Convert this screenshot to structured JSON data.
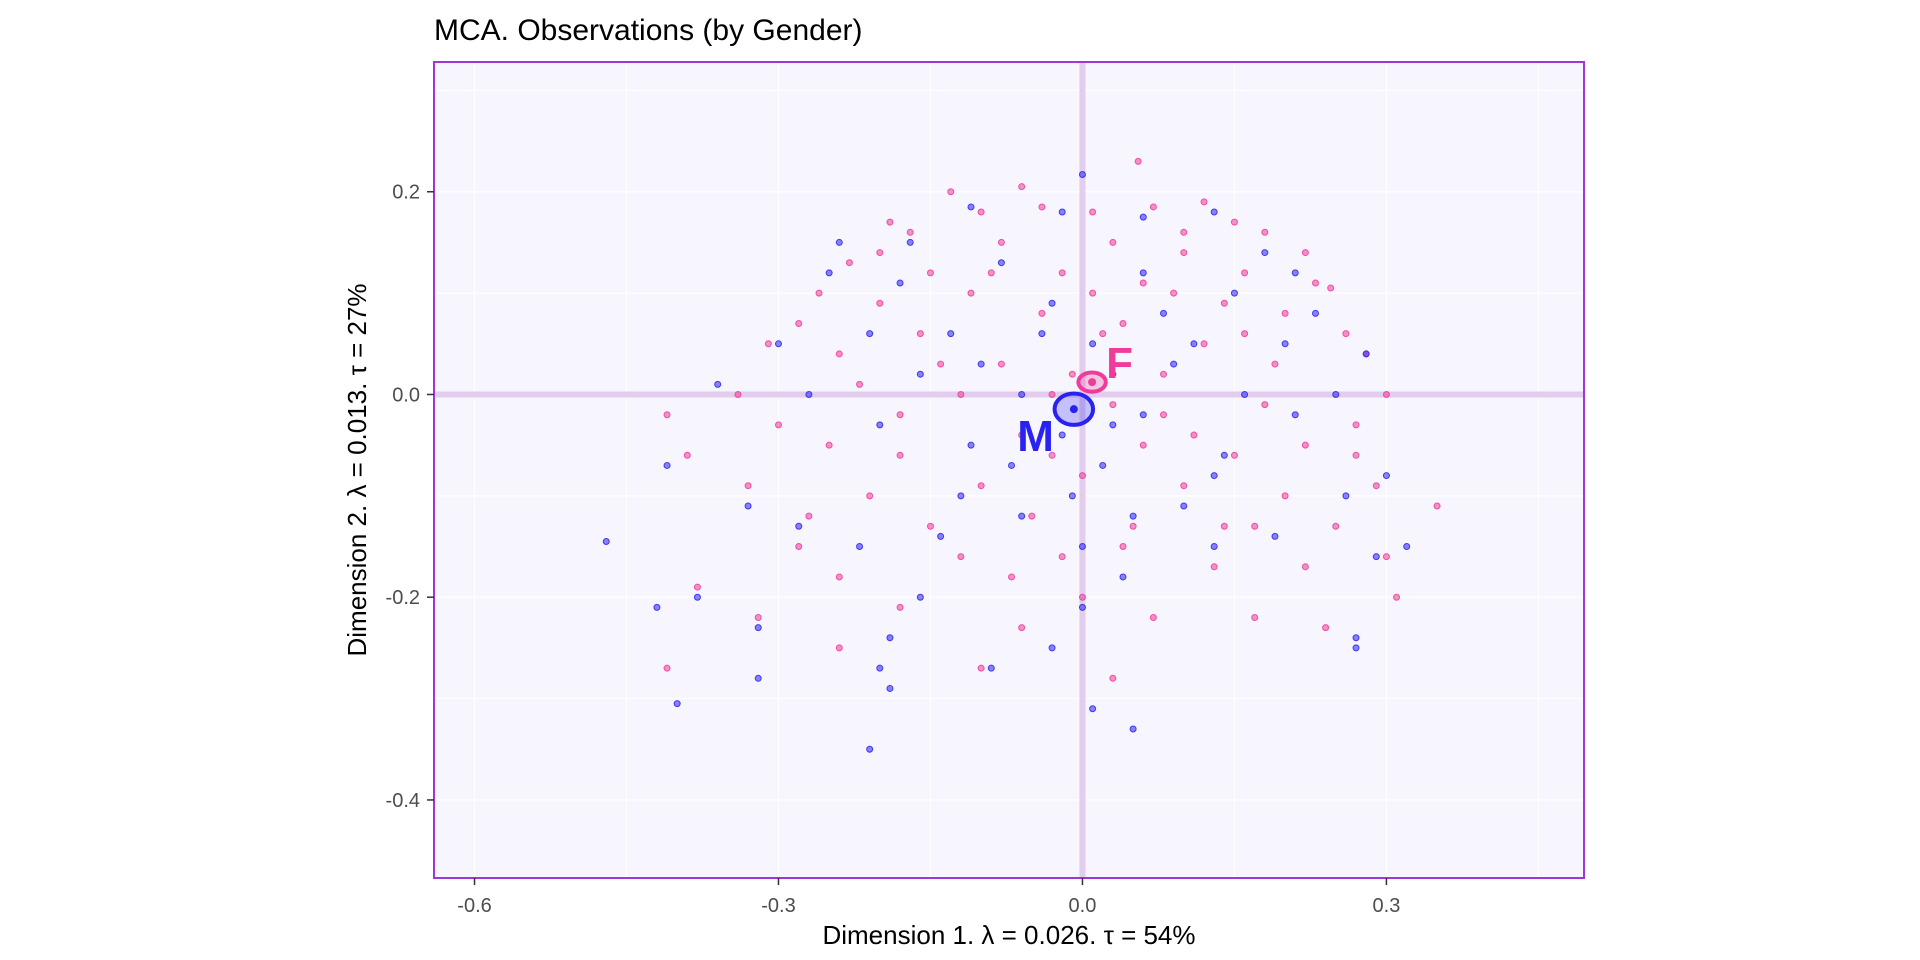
{
  "chart_data": {
    "type": "scatter",
    "title": "MCA. Observations (by Gender)",
    "xlabel": "Dimension 1.   λ = 0.026.  τ = 54%",
    "ylabel": "Dimension 2.   λ = 0.013.  τ = 27%",
    "xlim": [
      -0.64,
      0.495
    ],
    "ylim": [
      -0.477,
      0.328
    ],
    "x_ticks": [
      -0.6,
      -0.3,
      0.0,
      0.3
    ],
    "x_tick_labels": [
      "-0.6",
      "-0.3",
      "0.0",
      "0.3"
    ],
    "y_ticks": [
      -0.4,
      -0.2,
      0.0,
      0.2
    ],
    "y_tick_labels": [
      "-0.4",
      "-0.2",
      "0.0",
      "0.2"
    ],
    "grid": true,
    "colors": {
      "panel_background": "#f7f5fd",
      "panel_border": "#a035d8",
      "grid_line": "#ffffff",
      "origin_line": "#e2cdee",
      "female": "#ef3b9b",
      "male": "#2a22f0"
    },
    "groups": [
      {
        "label": "F",
        "color": "#ef3b9b",
        "mean": [
          0.0095,
          0.0122
        ],
        "ellipse_radii": [
          0.0135,
          0.0095
        ]
      },
      {
        "label": "M",
        "color": "#2a22f0",
        "mean": [
          -0.0085,
          -0.0145
        ],
        "ellipse_radii": [
          0.019,
          0.0155
        ]
      }
    ],
    "series": [
      {
        "color": "#ef3b9b",
        "points": [
          [
            0.055,
            0.23
          ],
          [
            -0.13,
            0.2
          ],
          [
            -0.06,
            0.205
          ],
          [
            0.12,
            0.19
          ],
          [
            0.15,
            0.17
          ],
          [
            -0.19,
            0.17
          ],
          [
            -0.1,
            0.18
          ],
          [
            0.01,
            0.18
          ],
          [
            0.07,
            0.185
          ],
          [
            -0.04,
            0.185
          ],
          [
            -0.17,
            0.16
          ],
          [
            0.18,
            0.16
          ],
          [
            0.22,
            0.14
          ],
          [
            -0.23,
            0.13
          ],
          [
            0.245,
            0.105
          ],
          [
            -0.26,
            0.1
          ],
          [
            0.03,
            0.15
          ],
          [
            -0.08,
            0.15
          ],
          [
            0.1,
            0.14
          ],
          [
            -0.15,
            0.12
          ],
          [
            0.16,
            0.12
          ],
          [
            -0.02,
            0.12
          ],
          [
            0.06,
            0.11
          ],
          [
            -0.11,
            0.1
          ],
          [
            0.14,
            0.09
          ],
          [
            -0.2,
            0.09
          ],
          [
            0.2,
            0.08
          ],
          [
            -0.28,
            0.07
          ],
          [
            0.26,
            0.06
          ],
          [
            -0.31,
            0.05
          ],
          [
            0.28,
            0.04
          ],
          [
            -0.04,
            0.08
          ],
          [
            0.04,
            0.07
          ],
          [
            -0.16,
            0.06
          ],
          [
            0.12,
            0.05
          ],
          [
            -0.24,
            0.04
          ],
          [
            0.19,
            0.03
          ],
          [
            0.08,
            0.02
          ],
          [
            -0.08,
            0.03
          ],
          [
            0.3,
            0.0
          ],
          [
            -0.34,
            0.0
          ],
          [
            0.27,
            -0.03
          ],
          [
            -0.3,
            -0.03
          ],
          [
            0.22,
            -0.05
          ],
          [
            -0.25,
            -0.05
          ],
          [
            0.15,
            -0.06
          ],
          [
            -0.18,
            -0.06
          ],
          [
            0.06,
            -0.05
          ],
          [
            -0.06,
            -0.04
          ],
          [
            0.0,
            -0.08
          ],
          [
            0.1,
            -0.09
          ],
          [
            -0.1,
            -0.09
          ],
          [
            0.2,
            -0.1
          ],
          [
            -0.21,
            -0.1
          ],
          [
            0.29,
            -0.09
          ],
          [
            -0.33,
            -0.09
          ],
          [
            -0.39,
            -0.06
          ],
          [
            0.25,
            -0.13
          ],
          [
            -0.27,
            -0.12
          ],
          [
            0.17,
            -0.13
          ],
          [
            -0.15,
            -0.13
          ],
          [
            0.05,
            -0.13
          ],
          [
            -0.05,
            -0.12
          ],
          [
            0.13,
            -0.17
          ],
          [
            -0.12,
            -0.16
          ],
          [
            0.22,
            -0.17
          ],
          [
            -0.24,
            -0.18
          ],
          [
            0.3,
            -0.16
          ],
          [
            0.35,
            -0.11
          ],
          [
            0.31,
            -0.2
          ],
          [
            -0.32,
            -0.22
          ],
          [
            -0.38,
            -0.19
          ],
          [
            -0.41,
            -0.02
          ],
          [
            0.07,
            -0.22
          ],
          [
            -0.06,
            -0.23
          ],
          [
            0.17,
            -0.22
          ],
          [
            -0.18,
            -0.21
          ],
          [
            -0.1,
            -0.27
          ],
          [
            0.03,
            -0.28
          ],
          [
            -0.24,
            -0.25
          ],
          [
            0.24,
            -0.23
          ],
          [
            -0.41,
            -0.27
          ],
          [
            0.0,
            -0.2
          ],
          [
            -0.02,
            -0.16
          ],
          [
            0.02,
            0.06
          ],
          [
            -0.01,
            0.02
          ],
          [
            0.03,
            -0.01
          ],
          [
            -0.03,
            0.0
          ],
          [
            0.08,
            -0.02
          ],
          [
            -0.12,
            0.0
          ],
          [
            0.1,
            0.16
          ],
          [
            -0.2,
            0.14
          ],
          [
            0.18,
            -0.01
          ],
          [
            -0.22,
            0.01
          ],
          [
            0.04,
            -0.15
          ],
          [
            0.09,
            0.1
          ],
          [
            -0.14,
            0.03
          ],
          [
            0.23,
            0.11
          ],
          [
            -0.28,
            -0.15
          ],
          [
            0.27,
            -0.06
          ],
          [
            0.14,
            -0.13
          ],
          [
            -0.07,
            -0.18
          ],
          [
            0.11,
            -0.04
          ],
          [
            -0.09,
            0.12
          ],
          [
            0.01,
            0.1
          ],
          [
            -0.03,
            -0.06
          ],
          [
            0.16,
            0.06
          ],
          [
            -0.18,
            -0.02
          ]
        ]
      },
      {
        "color": "#2a22f0",
        "points": [
          [
            0.0,
            0.217
          ],
          [
            -0.11,
            0.185
          ],
          [
            0.13,
            0.18
          ],
          [
            0.06,
            0.175
          ],
          [
            -0.02,
            0.18
          ],
          [
            -0.24,
            0.15
          ],
          [
            0.21,
            0.12
          ],
          [
            -0.3,
            0.05
          ],
          [
            -0.36,
            0.01
          ],
          [
            0.28,
            0.04
          ],
          [
            -0.18,
            0.11
          ],
          [
            0.15,
            0.1
          ],
          [
            -0.08,
            0.13
          ],
          [
            0.06,
            0.12
          ],
          [
            -0.21,
            0.06
          ],
          [
            0.2,
            0.05
          ],
          [
            -0.13,
            0.06
          ],
          [
            0.11,
            0.05
          ],
          [
            -0.04,
            0.06
          ],
          [
            0.03,
            0.02
          ],
          [
            -0.06,
            0.0
          ],
          [
            0.06,
            -0.02
          ],
          [
            -0.02,
            -0.04
          ],
          [
            0.02,
            -0.07
          ],
          [
            -0.11,
            -0.05
          ],
          [
            0.14,
            -0.06
          ],
          [
            -0.2,
            -0.03
          ],
          [
            0.21,
            -0.02
          ],
          [
            -0.27,
            0.0
          ],
          [
            0.25,
            0.0
          ],
          [
            -0.41,
            -0.07
          ],
          [
            -0.33,
            -0.11
          ],
          [
            0.3,
            -0.08
          ],
          [
            -0.28,
            -0.13
          ],
          [
            0.26,
            -0.1
          ],
          [
            -0.22,
            -0.15
          ],
          [
            0.19,
            -0.14
          ],
          [
            -0.14,
            -0.14
          ],
          [
            0.13,
            -0.15
          ],
          [
            -0.06,
            -0.12
          ],
          [
            0.05,
            -0.12
          ],
          [
            0.0,
            -0.15
          ],
          [
            -0.47,
            -0.145
          ],
          [
            0.32,
            -0.15
          ],
          [
            0.29,
            -0.16
          ],
          [
            -0.42,
            -0.21
          ],
          [
            -0.38,
            -0.2
          ],
          [
            -0.32,
            -0.23
          ],
          [
            -0.32,
            -0.28
          ],
          [
            -0.4,
            -0.305
          ],
          [
            -0.2,
            -0.27
          ],
          [
            -0.19,
            -0.29
          ],
          [
            -0.21,
            -0.35
          ],
          [
            -0.19,
            -0.24
          ],
          [
            0.0,
            -0.21
          ],
          [
            0.01,
            -0.31
          ],
          [
            0.05,
            -0.33
          ],
          [
            -0.09,
            -0.27
          ],
          [
            0.27,
            -0.24
          ],
          [
            0.27,
            -0.25
          ],
          [
            -0.03,
            -0.25
          ],
          [
            0.04,
            -0.18
          ],
          [
            -0.16,
            -0.2
          ],
          [
            0.13,
            -0.08
          ],
          [
            -0.1,
            0.03
          ],
          [
            0.09,
            0.03
          ],
          [
            0.16,
            0.0
          ],
          [
            -0.16,
            0.02
          ],
          [
            0.23,
            0.08
          ],
          [
            -0.25,
            0.12
          ],
          [
            0.01,
            0.05
          ],
          [
            -0.03,
            0.09
          ],
          [
            0.08,
            0.08
          ],
          [
            -0.07,
            -0.07
          ],
          [
            0.1,
            -0.11
          ],
          [
            -0.12,
            -0.1
          ],
          [
            0.18,
            0.14
          ],
          [
            -0.17,
            0.15
          ],
          [
            0.03,
            -0.03
          ],
          [
            -0.01,
            -0.1
          ]
        ]
      }
    ]
  }
}
